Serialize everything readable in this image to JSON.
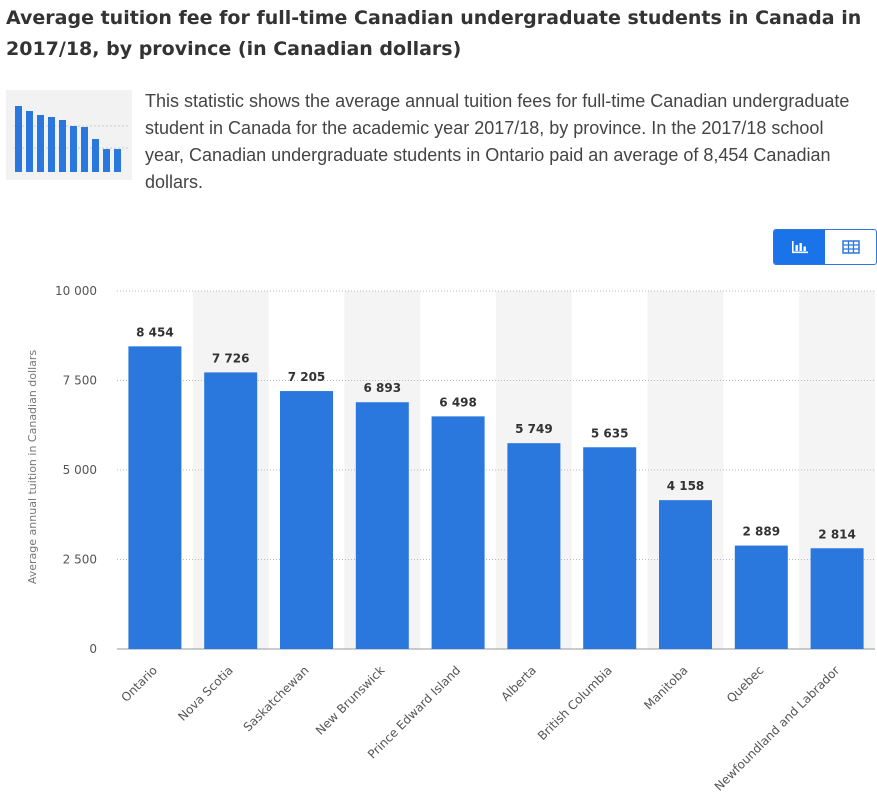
{
  "title": "Average tuition fee for full-time Canadian undergraduate students in Canada in 2017/18, by province (in Canadian dollars)",
  "description": "This statistic shows the average annual tuition fees for full-time Canadian undergraduate student in Canada for the academic year 2017/18, by province. In the 2017/18 school year, Canadian undergraduate students in Ontario paid an average of 8,454 Canadian dollars.",
  "toolbar": {
    "chart_view_icon": "bar-chart-icon",
    "table_view_icon": "table-icon"
  },
  "colors": {
    "bar": "#2a77dd",
    "band": "#f4f4f4",
    "grid": "#bbbbbb",
    "toggle_active": "#1a73e8"
  },
  "chart_data": {
    "type": "bar",
    "categories": [
      "Ontario",
      "Nova Scotia",
      "Saskatchewan",
      "New Brunswick",
      "Prince Edward Island",
      "Alberta",
      "British Columbia",
      "Manitoba",
      "Quebec",
      "Newfoundland and Labrador"
    ],
    "values": [
      8454,
      7726,
      7205,
      6893,
      6498,
      5749,
      5635,
      4158,
      2889,
      2814
    ],
    "value_labels": [
      "8 454",
      "7 726",
      "7 205",
      "6 893",
      "6 498",
      "5 749",
      "5 635",
      "4 158",
      "2 889",
      "2 814"
    ],
    "ylabel": "Average annual tuition in Canadian dollars",
    "ylim": [
      0,
      10000
    ],
    "yticks": [
      0,
      2500,
      5000,
      7500,
      10000
    ],
    "ytick_labels": [
      "0",
      "2 500",
      "5 000",
      "7 500",
      "10 000"
    ],
    "grid": true,
    "legend": "none"
  }
}
